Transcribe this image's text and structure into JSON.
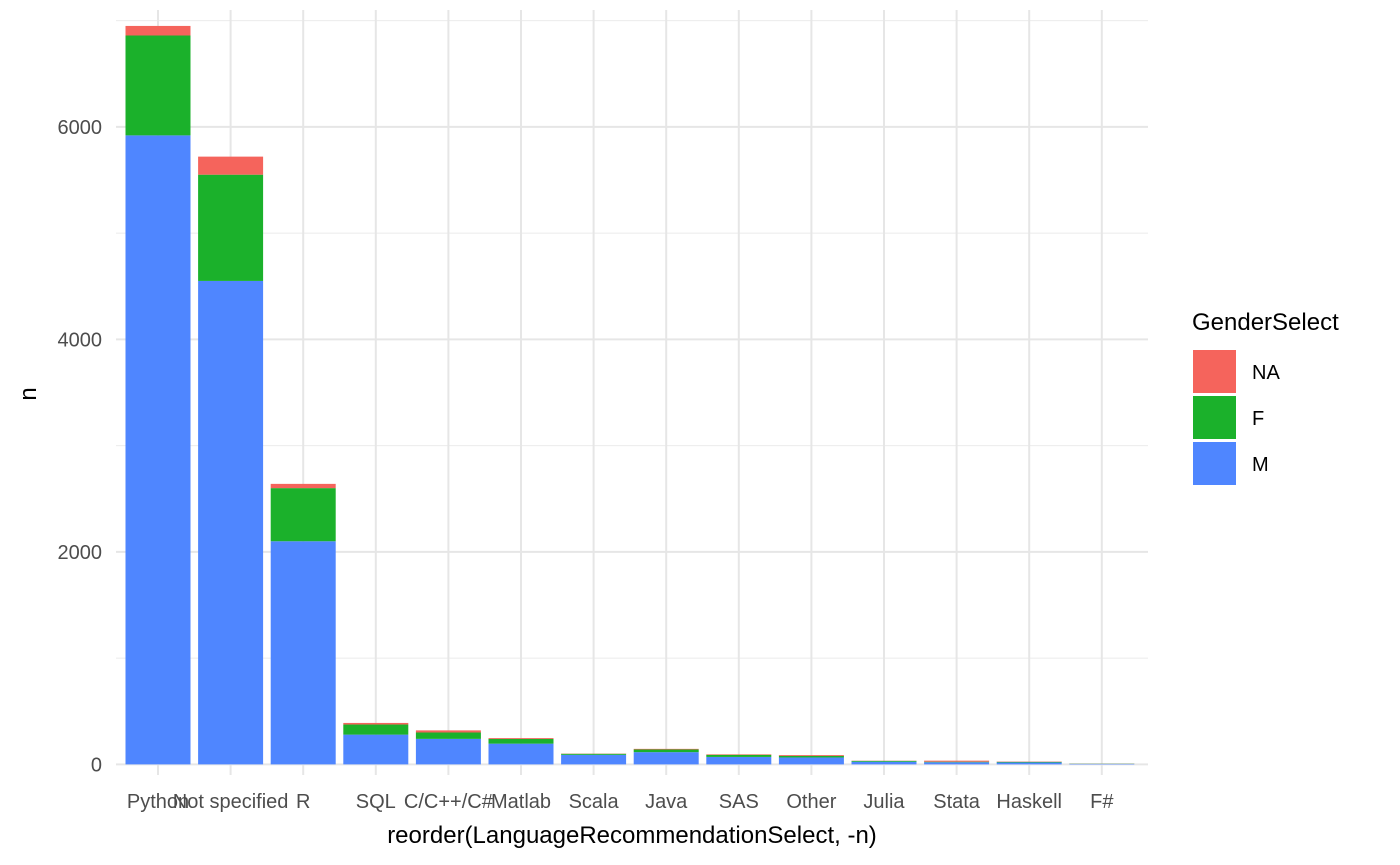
{
  "chart_data": {
    "type": "bar",
    "stacked": true,
    "categories": [
      "Python",
      "Not specified",
      "R",
      "SQL",
      "C/C++/C#",
      "Matlab",
      "Scala",
      "Java",
      "SAS",
      "Other",
      "Julia",
      "Stata",
      "Haskell",
      "F#"
    ],
    "series": [
      {
        "name": "M",
        "color": "#4f86ff",
        "values": [
          5920,
          4550,
          2100,
          280,
          240,
          195,
          90,
          115,
          70,
          65,
          25,
          20,
          18,
          5
        ]
      },
      {
        "name": "F",
        "color": "#1bb12b",
        "values": [
          940,
          1000,
          500,
          95,
          60,
          45,
          10,
          25,
          20,
          15,
          8,
          5,
          6,
          2
        ]
      },
      {
        "name": "NA",
        "color": "#f5645c",
        "values": [
          90,
          170,
          40,
          15,
          20,
          8,
          2,
          6,
          5,
          8,
          2,
          10,
          3,
          1
        ]
      }
    ],
    "xlabel": "reorder(LanguageRecommendationSelect, -n)",
    "ylabel": "n",
    "yticks": [
      0,
      2000,
      4000,
      6000
    ],
    "ylim": [
      -100,
      7100
    ],
    "legend": {
      "title": "GenderSelect",
      "order": [
        "NA",
        "F",
        "M"
      ],
      "position": "right"
    },
    "grid": true
  }
}
